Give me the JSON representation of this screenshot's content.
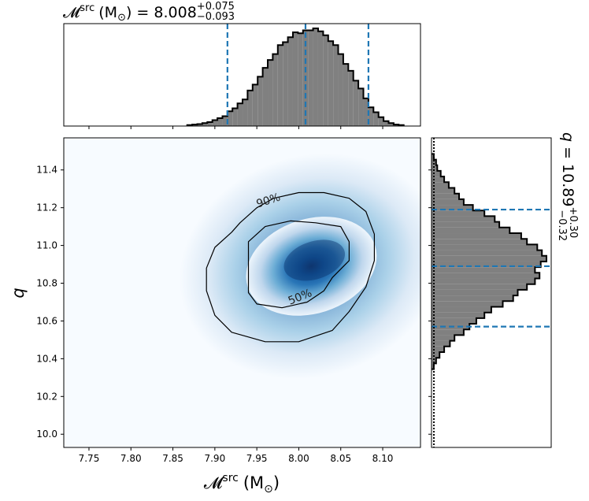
{
  "chart_data": [
    {
      "type": "heatmap",
      "panel": "joint",
      "xlabel_symbol": "𝓜",
      "xlabel_sup": "src",
      "xlabel_unit": "(M",
      "xlabel_unit_sub": "⊙",
      "xlabel_close": ")",
      "ylabel": "q",
      "xlim": [
        7.72,
        8.145
      ],
      "ylim": [
        9.93,
        11.57
      ],
      "xticks": [
        7.75,
        7.8,
        7.85,
        7.9,
        7.95,
        8.0,
        8.05,
        8.1
      ],
      "xtick_labels": [
        "7.75",
        "7.80",
        "7.85",
        "7.90",
        "7.95",
        "8.00",
        "8.05",
        "8.10"
      ],
      "yticks": [
        10.0,
        10.2,
        10.4,
        10.6,
        10.8,
        11.0,
        11.2,
        11.4
      ],
      "ytick_labels": [
        "10.0",
        "10.2",
        "10.4",
        "10.6",
        "10.8",
        "11.0",
        "11.2",
        "11.4"
      ],
      "colormap": "Blues",
      "density_center": {
        "x": 8.015,
        "y": 10.89
      },
      "contours": [
        {
          "label": "90%",
          "label_at": {
            "x": 7.965,
            "y": 11.22
          },
          "path": [
            [
              7.95,
              11.2
            ],
            [
              7.97,
              11.25
            ],
            [
              8.0,
              11.28
            ],
            [
              8.03,
              11.28
            ],
            [
              8.06,
              11.25
            ],
            [
              8.08,
              11.18
            ],
            [
              8.09,
              11.06
            ],
            [
              8.09,
              10.92
            ],
            [
              8.08,
              10.78
            ],
            [
              8.06,
              10.65
            ],
            [
              8.04,
              10.55
            ],
            [
              8.0,
              10.49
            ],
            [
              7.96,
              10.49
            ],
            [
              7.92,
              10.54
            ],
            [
              7.9,
              10.63
            ],
            [
              7.89,
              10.76
            ],
            [
              7.89,
              10.88
            ],
            [
              7.9,
              10.99
            ],
            [
              7.92,
              11.07
            ],
            [
              7.93,
              11.12
            ]
          ]
        },
        {
          "label": "50%",
          "label_at": {
            "x": 8.003,
            "y": 10.71
          },
          "path": [
            [
              7.94,
              11.02
            ],
            [
              7.96,
              11.1
            ],
            [
              7.99,
              11.13
            ],
            [
              8.02,
              11.12
            ],
            [
              8.05,
              11.1
            ],
            [
              8.06,
              11.02
            ],
            [
              8.06,
              10.92
            ],
            [
              8.04,
              10.83
            ],
            [
              8.03,
              10.76
            ],
            [
              8.01,
              10.7
            ],
            [
              7.98,
              10.67
            ],
            [
              7.95,
              10.69
            ],
            [
              7.94,
              10.75
            ],
            [
              7.94,
              10.84
            ],
            [
              7.94,
              10.93
            ]
          ]
        }
      ]
    },
    {
      "type": "bar",
      "panel": "top-marginal",
      "title_symbol": "𝓜",
      "title_sup": "src",
      "title_unit": "(M",
      "title_unit_sub": "⊙",
      "title_eq": ") = 8.008",
      "title_plus": "+0.075",
      "title_minus": "−0.093",
      "xlim": [
        7.72,
        8.145
      ],
      "x": [
        7.87,
        7.876,
        7.882,
        7.888,
        7.894,
        7.9,
        7.906,
        7.912,
        7.918,
        7.924,
        7.93,
        7.936,
        7.942,
        7.948,
        7.954,
        7.96,
        7.966,
        7.972,
        7.978,
        7.984,
        7.99,
        7.996,
        8.002,
        8.008,
        8.014,
        8.02,
        8.026,
        8.032,
        8.038,
        8.044,
        8.05,
        8.056,
        8.062,
        8.068,
        8.074,
        8.08,
        8.086,
        8.092,
        8.098,
        8.104,
        8.11,
        8.116,
        8.122
      ],
      "values": [
        0.01,
        0.015,
        0.02,
        0.03,
        0.04,
        0.06,
        0.08,
        0.1,
        0.15,
        0.18,
        0.23,
        0.27,
        0.36,
        0.42,
        0.5,
        0.59,
        0.67,
        0.73,
        0.82,
        0.85,
        0.9,
        0.95,
        0.94,
        0.97,
        0.97,
        0.99,
        0.96,
        0.92,
        0.86,
        0.82,
        0.73,
        0.63,
        0.56,
        0.46,
        0.38,
        0.28,
        0.19,
        0.14,
        0.09,
        0.05,
        0.03,
        0.015,
        0.01
      ],
      "quantiles": [
        7.915,
        8.008,
        8.083
      ]
    },
    {
      "type": "bar",
      "orientation": "horizontal",
      "panel": "right-marginal",
      "title_symbol": "q",
      "title_eq": " = 10.89",
      "title_plus": "+0.30",
      "title_minus": "−0.32",
      "ylim": [
        9.93,
        11.57
      ],
      "y": [
        10.36,
        10.39,
        10.42,
        10.45,
        10.48,
        10.51,
        10.54,
        10.57,
        10.6,
        10.63,
        10.66,
        10.69,
        10.72,
        10.75,
        10.78,
        10.81,
        10.84,
        10.87,
        10.9,
        10.93,
        10.96,
        10.99,
        11.02,
        11.05,
        11.08,
        11.11,
        11.14,
        11.17,
        11.2,
        11.23,
        11.26,
        11.29,
        11.32,
        11.35,
        11.38,
        11.41,
        11.44,
        11.47
      ],
      "values": [
        0.02,
        0.04,
        0.07,
        0.11,
        0.16,
        0.2,
        0.28,
        0.33,
        0.39,
        0.46,
        0.52,
        0.62,
        0.71,
        0.75,
        0.83,
        0.9,
        0.94,
        0.9,
        0.95,
        1.0,
        0.96,
        0.92,
        0.83,
        0.78,
        0.68,
        0.59,
        0.55,
        0.46,
        0.36,
        0.28,
        0.24,
        0.2,
        0.15,
        0.11,
        0.08,
        0.05,
        0.04,
        0.02
      ],
      "quantiles": [
        10.57,
        10.89,
        11.19
      ]
    }
  ],
  "colors": {
    "hist_fill": "#808080",
    "hist_edge": "#000000",
    "quantile_line": "#1f77b4",
    "density_low": "#f7fbff",
    "density_high": "#08306b",
    "contour": "#000000"
  }
}
